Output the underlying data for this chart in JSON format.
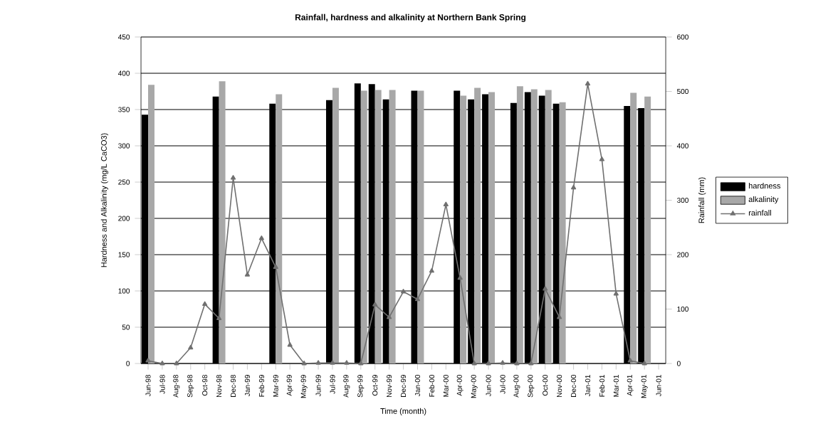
{
  "chart_data": {
    "type": "bar",
    "title": "Rainfall, hardness and alkalinity at Northern Bank Spring",
    "xlabel": "Time (month)",
    "ylabel": "Hardness and Alkalinity (mg/L CaCO3)",
    "y2label": "Rainfall (mm)",
    "categories": [
      "Jun-98",
      "Jul-98",
      "Aug-98",
      "Sep-98",
      "Oct-98",
      "Nov-98",
      "Dec-98",
      "Jan-99",
      "Feb-99",
      "Mar-99",
      "Apr-99",
      "May-99",
      "Jun-99",
      "Jul-99",
      "Aug-99",
      "Sep-99",
      "Oct-99",
      "Nov-99",
      "Dec-99",
      "Jan-00",
      "Feb-00",
      "Mar-00",
      "Apr-00",
      "May-00",
      "Jun-00",
      "Jul-00",
      "Aug-00",
      "Sep-00",
      "Oct-00",
      "Nov-00",
      "Dec-00",
      "Jan-01",
      "Feb-01",
      "Mar-01",
      "Apr-01",
      "May-01",
      "Jun-01"
    ],
    "series": [
      {
        "name": "hardness",
        "color": "#000000",
        "values": [
          343,
          null,
          null,
          null,
          null,
          368,
          null,
          null,
          null,
          358,
          null,
          null,
          null,
          363,
          null,
          386,
          385,
          364,
          null,
          376,
          null,
          null,
          376,
          364,
          371,
          null,
          359,
          374,
          369,
          358,
          null,
          null,
          null,
          null,
          355,
          352,
          null
        ]
      },
      {
        "name": "alkalinity",
        "color": "#a8a8a8",
        "values": [
          384,
          null,
          null,
          null,
          null,
          389,
          null,
          null,
          null,
          371,
          null,
          null,
          null,
          380,
          null,
          376,
          377,
          377,
          null,
          376,
          null,
          null,
          369,
          380,
          374,
          null,
          382,
          378,
          377,
          360,
          null,
          null,
          null,
          null,
          373,
          368,
          null
        ]
      },
      {
        "name": "rainfall",
        "type": "line",
        "axis": "y2",
        "color": "#707070",
        "marker": "triangle",
        "values": [
          5,
          0,
          0,
          29,
          109,
          83,
          341,
          163,
          230,
          177,
          34,
          0,
          1,
          1,
          1,
          0,
          108,
          85,
          132,
          118,
          170,
          292,
          157,
          0,
          0,
          1,
          0,
          0,
          137,
          85,
          323,
          514,
          375,
          128,
          5,
          0,
          null
        ]
      }
    ],
    "ylim": [
      0,
      450
    ],
    "yticks": [
      0,
      50,
      100,
      150,
      200,
      250,
      300,
      350,
      400,
      450
    ],
    "y2lim": [
      0,
      600
    ],
    "y2ticks": [
      0,
      100,
      200,
      300,
      400,
      500,
      600
    ],
    "grid": "y",
    "legend": "right"
  }
}
